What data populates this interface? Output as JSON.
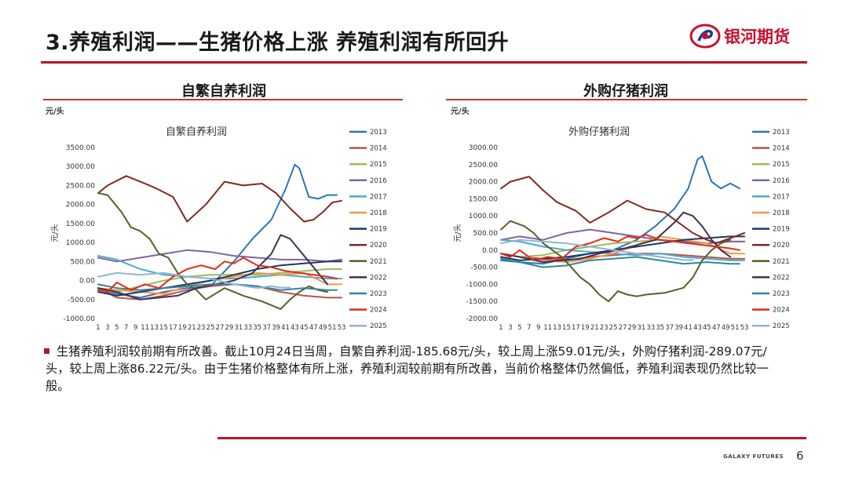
{
  "header": {
    "title": "3.养殖利润——生猪价格上涨 养殖利润有所回升",
    "logo_text": "银河期货",
    "accent_color": "#b3182a"
  },
  "left_panel": {
    "heading": "自繁自养利润",
    "unit": "元/头"
  },
  "right_panel": {
    "heading": "外购仔猪利润",
    "unit": "元/头"
  },
  "chart_data": [
    {
      "type": "line",
      "title": "自繁自养利润",
      "ylabel": "元/头",
      "ylim": [
        -1000,
        3500
      ],
      "yticks": [
        "3500.00",
        "3000.00",
        "2500.00",
        "2000.00",
        "1500.00",
        "1000.00",
        "500.00",
        "0.00",
        "-500.00",
        "-1000.00"
      ],
      "xticks": [
        "1",
        "3",
        "5",
        "7",
        "9",
        "11",
        "13",
        "15",
        "17",
        "19",
        "21",
        "23",
        "25",
        "27",
        "29",
        "31",
        "33",
        "35",
        "37",
        "39",
        "41",
        "43",
        "45",
        "47",
        "49",
        "51",
        "53"
      ],
      "legend_position": "right",
      "series": [
        {
          "name": "2013",
          "color": "#2e75b6",
          "weeks": [
            1,
            5,
            10,
            15,
            20,
            25,
            30,
            34,
            38,
            41,
            43,
            44,
            46,
            48,
            50,
            52
          ],
          "values": [
            -250,
            -350,
            -450,
            -300,
            -200,
            -150,
            500,
            1100,
            1600,
            2400,
            3050,
            2950,
            2200,
            2150,
            2250,
            2250
          ]
        },
        {
          "name": "2014",
          "color": "#c0504d",
          "weeks": [
            1,
            5,
            10,
            15,
            20,
            25,
            30,
            35,
            40,
            45,
            50,
            53
          ],
          "values": [
            -200,
            -450,
            -500,
            -400,
            -250,
            -150,
            -100,
            -150,
            -300,
            -400,
            -450,
            -450
          ]
        },
        {
          "name": "2015",
          "color": "#9bbb59",
          "weeks": [
            1,
            5,
            10,
            15,
            20,
            25,
            30,
            35,
            40,
            45,
            50,
            53
          ],
          "values": [
            -250,
            -300,
            -150,
            0,
            100,
            150,
            150,
            150,
            200,
            250,
            300,
            300
          ]
        },
        {
          "name": "2016",
          "color": "#8064a2",
          "weeks": [
            1,
            5,
            10,
            15,
            20,
            25,
            30,
            35,
            40,
            45,
            50,
            53
          ],
          "values": [
            600,
            500,
            600,
            700,
            800,
            750,
            650,
            600,
            550,
            550,
            500,
            550
          ]
        },
        {
          "name": "2017",
          "color": "#4bacc6",
          "weeks": [
            1,
            5,
            10,
            15,
            20,
            25,
            30,
            35,
            40,
            45,
            50,
            53
          ],
          "values": [
            650,
            550,
            300,
            150,
            100,
            50,
            50,
            100,
            150,
            100,
            50,
            50
          ]
        },
        {
          "name": "2018",
          "color": "#f79646",
          "weeks": [
            1,
            5,
            10,
            15,
            20,
            25,
            30,
            35,
            40,
            45,
            50,
            53
          ],
          "values": [
            -200,
            -250,
            -300,
            -350,
            -150,
            0,
            100,
            200,
            150,
            200,
            -100,
            -100
          ]
        },
        {
          "name": "2019",
          "color": "#1f3864",
          "weeks": [
            1,
            5,
            10,
            15,
            20,
            25,
            30,
            35,
            40,
            45,
            50,
            53
          ],
          "values": [
            -300,
            -400,
            -300,
            -200,
            -100,
            0,
            150,
            300,
            400,
            450,
            500,
            500
          ]
        },
        {
          "name": "2020",
          "color": "#7f2a1e",
          "weeks": [
            1,
            3,
            7,
            10,
            13,
            17,
            20,
            24,
            28,
            32,
            36,
            39,
            42,
            45,
            47,
            49,
            51,
            53
          ],
          "values": [
            2300,
            2500,
            2750,
            2600,
            2450,
            2200,
            1550,
            2000,
            2600,
            2500,
            2550,
            2300,
            1900,
            1550,
            1600,
            1800,
            2050,
            2100
          ]
        },
        {
          "name": "2021",
          "color": "#4f6228",
          "weeks": [
            1,
            3,
            6,
            8,
            10,
            12,
            14,
            16,
            18,
            20,
            22,
            24,
            28,
            32,
            36,
            40,
            42,
            44,
            46,
            48,
            50
          ],
          "values": [
            2300,
            2250,
            1800,
            1400,
            1300,
            1100,
            700,
            600,
            200,
            -100,
            -250,
            -500,
            -200,
            -400,
            -550,
            -750,
            -500,
            -300,
            -150,
            -250,
            -300
          ]
        },
        {
          "name": "2022",
          "color": "#403151",
          "weeks": [
            1,
            5,
            10,
            14,
            18,
            22,
            26,
            30,
            34,
            38,
            40,
            42,
            44,
            46,
            48,
            50
          ],
          "values": [
            -200,
            -300,
            -500,
            -450,
            -400,
            -200,
            -100,
            0,
            200,
            700,
            1200,
            1100,
            800,
            500,
            200,
            -100
          ]
        },
        {
          "name": "2023",
          "color": "#31859c",
          "weeks": [
            1,
            5,
            10,
            15,
            20,
            25,
            30,
            35,
            40,
            45,
            50,
            52
          ],
          "values": [
            -100,
            -200,
            -250,
            -200,
            -150,
            -100,
            -100,
            -150,
            -250,
            -200,
            -250,
            -250
          ]
        },
        {
          "name": "2024",
          "color": "#e32b17",
          "weeks": [
            1,
            3,
            5,
            8,
            11,
            14,
            17,
            20,
            23,
            26,
            28,
            30,
            32,
            35,
            38,
            41,
            44,
            47,
            50,
            52
          ],
          "values": [
            -250,
            -300,
            -50,
            -250,
            -100,
            -200,
            100,
            300,
            400,
            300,
            500,
            450,
            600,
            400,
            350,
            250,
            200,
            150,
            100,
            50
          ]
        },
        {
          "name": "2025",
          "color": "#95b3d7",
          "weeks": [
            1,
            5,
            10,
            15,
            20,
            25,
            30,
            35,
            38,
            40,
            42
          ],
          "values": [
            100,
            200,
            150,
            200,
            100,
            50,
            -100,
            -200,
            -150,
            -186,
            -186
          ]
        }
      ]
    },
    {
      "type": "line",
      "title": "外购仔猪利润",
      "ylabel": "元/头",
      "ylim": [
        -2000,
        3000
      ],
      "yticks": [
        "3000.00",
        "2500.00",
        "2000.00",
        "1500.00",
        "1000.00",
        "500.00",
        "0.00",
        "-500.00",
        "-1000.00",
        "-1500.00",
        "-2000.00"
      ],
      "xticks": [
        "1",
        "3",
        "5",
        "7",
        "9",
        "11",
        "13",
        "15",
        "17",
        "19",
        "21",
        "23",
        "25",
        "27",
        "29",
        "31",
        "33",
        "35",
        "37",
        "39",
        "41",
        "43",
        "45",
        "47",
        "49",
        "51",
        "53"
      ],
      "legend_position": "right",
      "series": [
        {
          "name": "2013",
          "color": "#2e75b6",
          "weeks": [
            1,
            5,
            10,
            15,
            20,
            25,
            30,
            34,
            38,
            41,
            43,
            44,
            46,
            48,
            50,
            52
          ],
          "values": [
            -300,
            -350,
            -400,
            -250,
            -100,
            0,
            300,
            700,
            1200,
            1800,
            2650,
            2750,
            2000,
            1800,
            1950,
            1800
          ]
        },
        {
          "name": "2014",
          "color": "#c0504d",
          "weeks": [
            1,
            5,
            10,
            15,
            20,
            25,
            30,
            35,
            40,
            45,
            50,
            53
          ],
          "values": [
            -100,
            -200,
            -250,
            -300,
            -200,
            -150,
            -100,
            -100,
            -150,
            -200,
            -250,
            -250
          ]
        },
        {
          "name": "2015",
          "color": "#9bbb59",
          "weeks": [
            1,
            5,
            10,
            15,
            20,
            25,
            30,
            35,
            40,
            45,
            50,
            53
          ],
          "values": [
            -100,
            -200,
            -150,
            0,
            100,
            200,
            250,
            300,
            250,
            200,
            250,
            250
          ]
        },
        {
          "name": "2016",
          "color": "#8064a2",
          "weeks": [
            1,
            5,
            10,
            15,
            20,
            25,
            30,
            35,
            40,
            45,
            50,
            53
          ],
          "values": [
            300,
            400,
            300,
            500,
            600,
            500,
            400,
            300,
            250,
            200,
            250,
            250
          ]
        },
        {
          "name": "2017",
          "color": "#4bacc6",
          "weeks": [
            1,
            5,
            10,
            15,
            20,
            25,
            30,
            35,
            40,
            45,
            50,
            53
          ],
          "values": [
            300,
            250,
            100,
            0,
            -50,
            -100,
            -150,
            -100,
            -200,
            -250,
            -300,
            -300
          ]
        },
        {
          "name": "2018",
          "color": "#f79646",
          "weeks": [
            1,
            5,
            10,
            15,
            20,
            25,
            30,
            35,
            40,
            45,
            50,
            53
          ],
          "values": [
            -100,
            -200,
            -300,
            -350,
            -250,
            -100,
            150,
            400,
            300,
            200,
            -100,
            -100
          ]
        },
        {
          "name": "2019",
          "color": "#1f3864",
          "weeks": [
            1,
            5,
            10,
            15,
            20,
            25,
            30,
            35,
            40,
            45,
            50,
            53
          ],
          "values": [
            -200,
            -300,
            -250,
            -200,
            -100,
            0,
            100,
            200,
            300,
            350,
            400,
            400
          ]
        },
        {
          "name": "2020",
          "color": "#7f2a1e",
          "weeks": [
            1,
            3,
            7,
            10,
            13,
            17,
            20,
            24,
            28,
            32,
            36,
            39,
            42,
            45,
            47,
            49,
            51,
            53
          ],
          "values": [
            1800,
            2000,
            2150,
            1750,
            1400,
            1150,
            800,
            1100,
            1450,
            1200,
            1100,
            800,
            500,
            300,
            200,
            300,
            400,
            500
          ]
        },
        {
          "name": "2021",
          "color": "#4f6228",
          "weeks": [
            1,
            3,
            6,
            8,
            10,
            12,
            14,
            16,
            18,
            20,
            22,
            24,
            26,
            28,
            30,
            32,
            36,
            40,
            42,
            44,
            46,
            48,
            50
          ],
          "values": [
            600,
            850,
            700,
            500,
            200,
            0,
            -200,
            -500,
            -800,
            -1000,
            -1300,
            -1500,
            -1200,
            -1300,
            -1350,
            -1300,
            -1250,
            -1100,
            -800,
            -300,
            0,
            200,
            300
          ]
        },
        {
          "name": "2022",
          "color": "#403151",
          "weeks": [
            1,
            5,
            10,
            14,
            18,
            22,
            26,
            30,
            34,
            38,
            40,
            42,
            44,
            46,
            48,
            50
          ],
          "values": [
            -100,
            -200,
            -350,
            -300,
            -250,
            -100,
            0,
            150,
            300,
            800,
            1100,
            1000,
            700,
            300,
            0,
            -200
          ]
        },
        {
          "name": "2023",
          "color": "#31859c",
          "weeks": [
            1,
            5,
            10,
            15,
            20,
            25,
            30,
            35,
            40,
            45,
            50,
            52
          ],
          "values": [
            -250,
            -350,
            -500,
            -450,
            -300,
            -250,
            -200,
            -300,
            -400,
            -350,
            -400,
            -400
          ]
        },
        {
          "name": "2024",
          "color": "#e32b17",
          "weeks": [
            1,
            3,
            5,
            8,
            11,
            14,
            17,
            20,
            23,
            26,
            28,
            30,
            32,
            35,
            38,
            41,
            44,
            47,
            50,
            52
          ],
          "values": [
            -100,
            -200,
            0,
            -300,
            -200,
            -250,
            100,
            200,
            350,
            250,
            400,
            350,
            450,
            300,
            250,
            200,
            150,
            100,
            50,
            0
          ]
        },
        {
          "name": "2025",
          "color": "#95b3d7",
          "weeks": [
            1,
            5,
            10,
            15,
            20,
            25,
            30,
            35,
            38,
            40,
            42
          ],
          "values": [
            200,
            300,
            250,
            200,
            100,
            0,
            -100,
            -200,
            -250,
            -289,
            -289
          ]
        }
      ]
    }
  ],
  "note": {
    "text": "生猪养殖利润较前期有所改善。截止10月24日当周，自繁自养利润-185.68元/头，较上周上涨59.01元/头，外购仔猪利润-289.07元/头，较上周上涨86.22元/头。由于生猪价格整体有所上涨，养殖利润较前期有所改善，当前价格整体仍然偏低，养殖利润表现仍然比较一般。"
  },
  "footer": {
    "brand": "GALAXY FUTURES",
    "page": "6"
  }
}
